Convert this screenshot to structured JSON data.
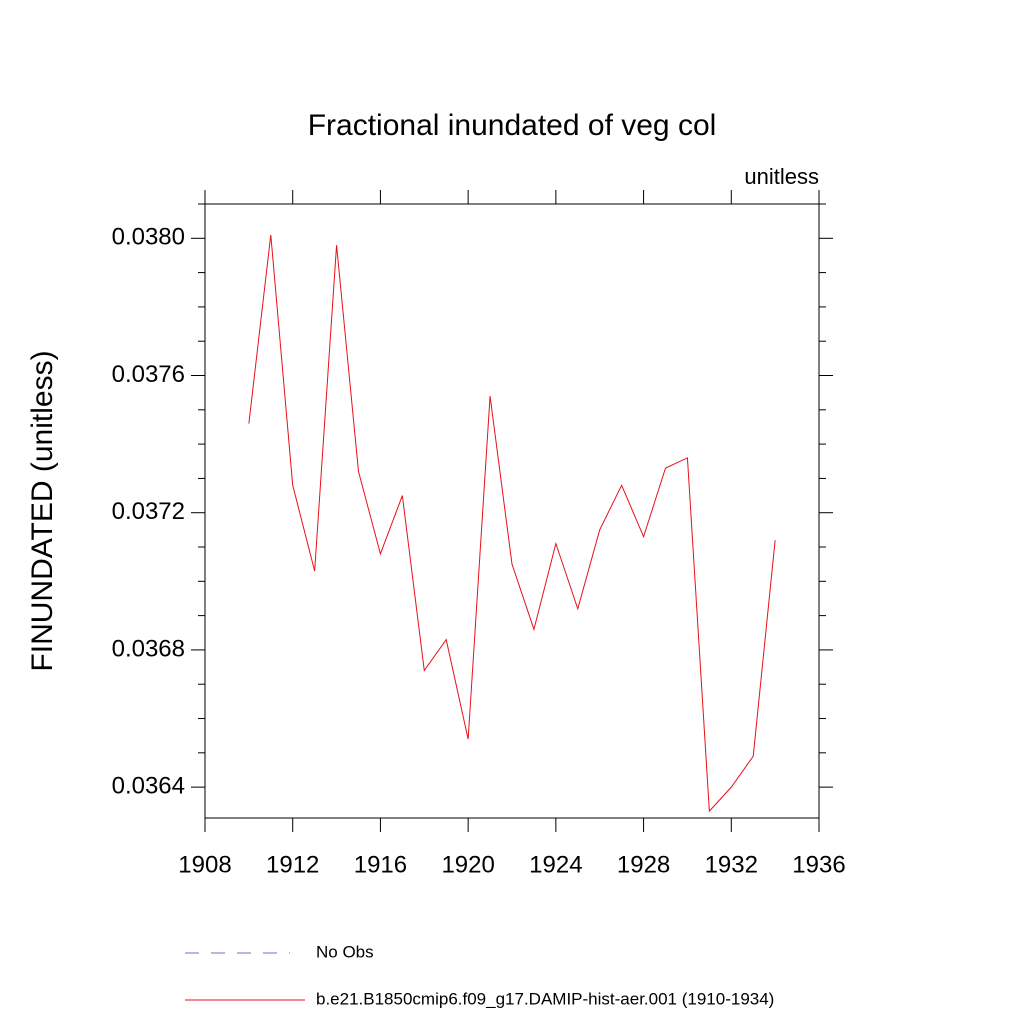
{
  "chart_data": {
    "type": "line",
    "title": "Fractional inundated of veg col",
    "units_label": "unitless",
    "ylabel": "FINUNDATED  (unitless)",
    "x": [
      1910,
      1911,
      1912,
      1913,
      1914,
      1915,
      1916,
      1917,
      1918,
      1919,
      1920,
      1921,
      1922,
      1923,
      1924,
      1925,
      1926,
      1927,
      1928,
      1929,
      1930,
      1931,
      1932,
      1933,
      1934
    ],
    "series": [
      {
        "name": "No Obs",
        "color": "#7b68c8",
        "dashed": true,
        "values": [
          null,
          null,
          null,
          null,
          null,
          null,
          null,
          null,
          null,
          null,
          null,
          null,
          null,
          null,
          null,
          null,
          null,
          null,
          null,
          null,
          null,
          null,
          null,
          null,
          null
        ]
      },
      {
        "name": "b.e21.B1850cmip6.f09_g17.DAMIP-hist-aer.001 (1910-1934)",
        "color": "#e8101a",
        "dashed": false,
        "values": [
          0.03746,
          0.03801,
          0.03728,
          0.03703,
          0.03798,
          0.03732,
          0.03708,
          0.03725,
          0.03674,
          0.03683,
          0.03654,
          0.03754,
          0.03705,
          0.03686,
          0.03711,
          0.03692,
          0.03715,
          0.03728,
          0.03713,
          0.03733,
          0.03736,
          0.03633,
          0.0364,
          0.03649,
          0.03712
        ]
      }
    ],
    "xlim": [
      1908,
      1936
    ],
    "xticks": [
      1908,
      1912,
      1916,
      1920,
      1924,
      1928,
      1932,
      1936
    ],
    "ylim": [
      0.03631,
      0.0381
    ],
    "yticks": [
      {
        "value": 0.038,
        "label": "0.0380"
      },
      0.0376,
      0.0372,
      0.0368,
      0.0364
    ],
    "yminorticks": [
      0.0365,
      0.0366,
      0.0367,
      0.0369,
      0.037,
      0.0371,
      0.0373,
      0.0374,
      0.0375,
      0.0377,
      0.0378,
      0.0379,
      0.0381
    ]
  }
}
